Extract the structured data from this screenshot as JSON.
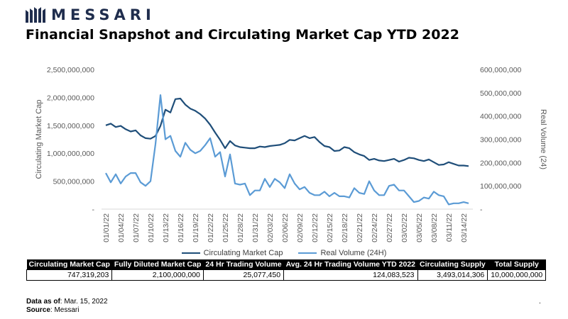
{
  "brand": {
    "name": "MESSARI",
    "logo_icon": "messari-logo-icon"
  },
  "title": "Financial Snapshot and Circulating Market Cap YTD 2022",
  "colors": {
    "market_cap": "#1f4e79",
    "volume": "#5b9bd5",
    "header_bg": "#000000"
  },
  "chart_data": {
    "type": "line",
    "title": "",
    "ylabel": "Circulating Market Cap",
    "ylabel_right": "Real Volume (24)",
    "ylim": [
      0,
      2500000000
    ],
    "ylim_right": [
      0,
      600000000
    ],
    "yticks": [
      "-",
      "500,000,000",
      "1,000,000,000",
      "1,500,000,000",
      "2,000,000,000",
      "2,500,000,000"
    ],
    "yticks_right": [
      "-",
      "100,000,000",
      "200,000,000",
      "300,000,000",
      "400,000,000",
      "500,000,000",
      "600,000,000"
    ],
    "x_tick_labels": [
      "01/01/22",
      "01/04/22",
      "01/07/22",
      "01/10/22",
      "01/13/22",
      "01/16/22",
      "01/19/22",
      "01/22/22",
      "01/25/22",
      "01/28/22",
      "01/31/22",
      "02/03/22",
      "02/06/22",
      "02/09/22",
      "02/12/22",
      "02/15/22",
      "02/18/22",
      "02/21/22",
      "02/24/22",
      "02/27/22",
      "03/02/22",
      "03/05/22",
      "03/08/22",
      "03/11/22",
      "03/14/22"
    ],
    "n_points": 74,
    "series": [
      {
        "name": "Circulating Market Cap",
        "axis": "left",
        "values": [
          1500000000,
          1530000000,
          1470000000,
          1490000000,
          1430000000,
          1390000000,
          1410000000,
          1320000000,
          1270000000,
          1260000000,
          1310000000,
          1490000000,
          1780000000,
          1730000000,
          1970000000,
          1980000000,
          1870000000,
          1800000000,
          1760000000,
          1700000000,
          1620000000,
          1510000000,
          1370000000,
          1240000000,
          1090000000,
          1220000000,
          1140000000,
          1110000000,
          1100000000,
          1090000000,
          1090000000,
          1120000000,
          1110000000,
          1130000000,
          1140000000,
          1150000000,
          1180000000,
          1240000000,
          1230000000,
          1270000000,
          1310000000,
          1270000000,
          1290000000,
          1200000000,
          1130000000,
          1110000000,
          1040000000,
          1050000000,
          1110000000,
          1090000000,
          1020000000,
          980000000,
          950000000,
          880000000,
          900000000,
          870000000,
          860000000,
          880000000,
          900000000,
          850000000,
          880000000,
          920000000,
          910000000,
          880000000,
          860000000,
          890000000,
          840000000,
          790000000,
          800000000,
          840000000,
          810000000,
          780000000,
          780000000,
          770000000
        ]
      },
      {
        "name": "Real Volume (24H)",
        "axis": "right",
        "values": [
          155000000,
          115000000,
          150000000,
          110000000,
          140000000,
          155000000,
          155000000,
          115000000,
          100000000,
          120000000,
          280000000,
          490000000,
          300000000,
          315000000,
          250000000,
          225000000,
          285000000,
          255000000,
          240000000,
          250000000,
          275000000,
          305000000,
          225000000,
          245000000,
          140000000,
          235000000,
          110000000,
          105000000,
          110000000,
          60000000,
          80000000,
          80000000,
          130000000,
          95000000,
          130000000,
          115000000,
          90000000,
          150000000,
          110000000,
          85000000,
          95000000,
          70000000,
          60000000,
          60000000,
          75000000,
          55000000,
          70000000,
          55000000,
          55000000,
          50000000,
          90000000,
          70000000,
          65000000,
          120000000,
          80000000,
          60000000,
          60000000,
          100000000,
          105000000,
          80000000,
          80000000,
          55000000,
          30000000,
          35000000,
          50000000,
          45000000,
          75000000,
          60000000,
          55000000,
          20000000,
          25000000,
          25000000,
          30000000,
          25000000
        ]
      }
    ]
  },
  "legend": {
    "market_cap": "Circulating Market Cap",
    "volume": "Real Volume (24H)"
  },
  "table": {
    "headers": [
      "Circulating Market Cap",
      "Fully Diluted Market Cap",
      "24 Hr Trading Volume",
      "Avg. 24 Hr Trading Volume YTD 2022",
      "Circulating Supply",
      "Total Supply"
    ],
    "values": [
      "747,319,203",
      "2,100,000,000",
      "25,077,450",
      "124,083,523",
      "3,493,014,306",
      "10,000,000,000"
    ]
  },
  "footer": {
    "data_as_of_label": "Data as of",
    "data_as_of_value": ": Mar. 15, 2022",
    "source_label": "Source",
    "source_value": ": Messari"
  },
  "stray_mark": "."
}
